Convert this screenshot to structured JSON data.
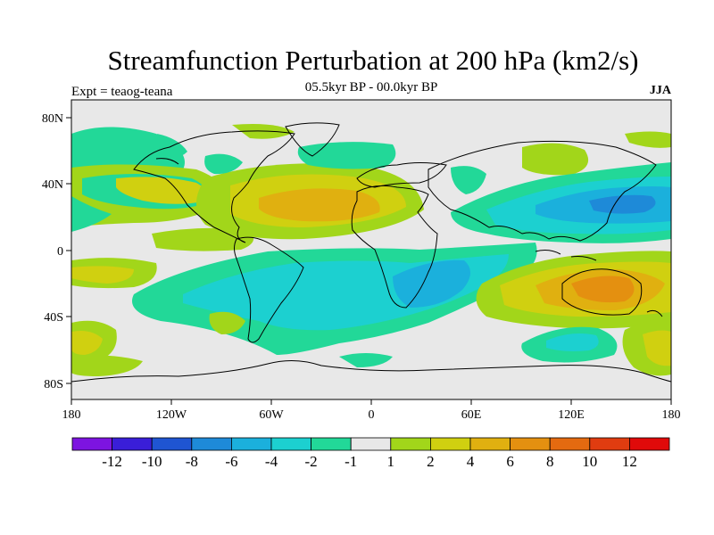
{
  "title": "Streamfunction Perturbation at 200 hPa (km2/s)",
  "subtitle": "05.5kyr BP - 00.0kyr BP",
  "experiment": "Expt = teaog-teana",
  "season": "JJA",
  "lon_ticks": [
    "180",
    "120W",
    "60W",
    "0",
    "60E",
    "120E",
    "180"
  ],
  "lat_ticks": [
    "80N",
    "40N",
    "0",
    "40S",
    "80S"
  ],
  "colorbar": {
    "colors": [
      "#7d14e0",
      "#3a1ed8",
      "#1f55d2",
      "#1e8ad8",
      "#1bb0dc",
      "#1cd0d0",
      "#22d898",
      "#e8e8e8",
      "#a2d61a",
      "#d0d010",
      "#e0b010",
      "#e49010",
      "#e46a10",
      "#e03c10",
      "#e00a0a"
    ],
    "labels": [
      "-12",
      "-10",
      "-8",
      "-6",
      "-4",
      "-2",
      "-1",
      "1",
      "2",
      "4",
      "6",
      "8",
      "10",
      "12"
    ]
  }
}
